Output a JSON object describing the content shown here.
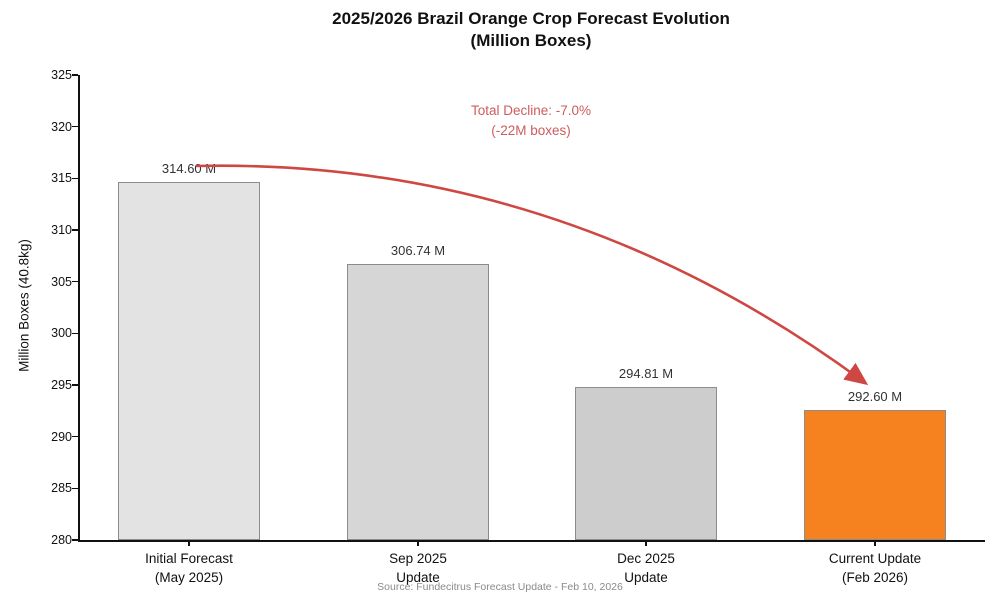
{
  "title": {
    "line1": "2025/2026 Brazil Orange Crop Forecast Evolution",
    "line2": "(Million Boxes)"
  },
  "annotation": {
    "line1": "Total Decline: -7.0%",
    "line2": "(-22M boxes)"
  },
  "source": "Source: Fundecitrus Forecast Update - Feb 10, 2026",
  "colors": {
    "bar_fills": [
      "#e3e3e3",
      "#d6d6d6",
      "#cdcdcd",
      "#f5821f"
    ],
    "bar_edge": "#8c8c8c",
    "arrow": "#cf4742",
    "annotation_text": "#cd5c5c",
    "axis": "#111111",
    "source_text": "#8a8a8a"
  },
  "chart_data": {
    "type": "bar",
    "title": "2025/2026 Brazil Orange Crop Forecast Evolution (Million Boxes)",
    "categories": [
      "Initial Forecast\n(May 2025)",
      "Sep 2025\nUpdate",
      "Dec 2025\nUpdate",
      "Current Update\n(Feb 2026)"
    ],
    "values": [
      314.6,
      306.74,
      294.81,
      292.6
    ],
    "value_labels": [
      "314.60 M",
      "306.74 M",
      "294.81 M",
      "292.60 M"
    ],
    "xlabel": "",
    "ylabel": "Million Boxes (40.8kg)",
    "ylim": [
      280,
      325
    ],
    "yticks": [
      280,
      285,
      290,
      295,
      300,
      305,
      310,
      315,
      320,
      325
    ],
    "grid": false,
    "legend": false,
    "annotation": "Total Decline: -7.0% (-22M boxes)",
    "source": "Source: Fundecitrus Forecast Update - Feb 10, 2026"
  }
}
